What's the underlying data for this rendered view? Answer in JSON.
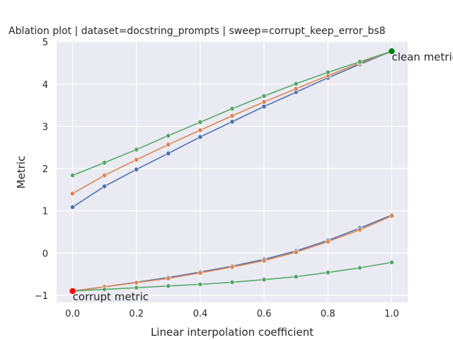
{
  "chart_data": {
    "type": "line",
    "title": "Ablation plot | dataset=docstring_prompts | sweep=corrupt_keep_error_bs8",
    "xlabel": "Linear interpolation coefficient",
    "ylabel": "Metric",
    "xlim": [
      -0.05,
      1.05
    ],
    "ylim": [
      -1.17,
      5.02
    ],
    "grid": true,
    "x": [
      0.0,
      0.1,
      0.2,
      0.3,
      0.4,
      0.5,
      0.6,
      0.7,
      0.8,
      0.9,
      1.0
    ],
    "xticks": [
      "0.0",
      "0.2",
      "0.4",
      "0.6",
      "0.8",
      "1.0"
    ],
    "yticks": [
      "−1",
      "0",
      "1",
      "2",
      "3",
      "4",
      "5"
    ],
    "series": [
      {
        "color": "#4c72b0",
        "values": [
          1.09,
          1.58,
          1.98,
          2.36,
          2.75,
          3.11,
          3.47,
          3.81,
          4.15,
          4.47,
          4.78
        ]
      },
      {
        "color": "#dd8452",
        "values": [
          1.41,
          1.84,
          2.21,
          2.57,
          2.91,
          3.25,
          3.58,
          3.89,
          4.2,
          4.5,
          4.78
        ]
      },
      {
        "color": "#55a868",
        "values": [
          1.84,
          2.14,
          2.45,
          2.78,
          3.1,
          3.42,
          3.72,
          4.01,
          4.28,
          4.53,
          4.78
        ]
      },
      {
        "color": "#4c72b0",
        "values": [
          -0.9,
          -0.8,
          -0.69,
          -0.58,
          -0.45,
          -0.31,
          -0.15,
          0.05,
          0.3,
          0.59,
          0.9
        ]
      },
      {
        "color": "#dd8452",
        "values": [
          -0.9,
          -0.8,
          -0.7,
          -0.6,
          -0.47,
          -0.33,
          -0.18,
          0.02,
          0.27,
          0.55,
          0.88
        ]
      },
      {
        "color": "#55a868",
        "values": [
          -0.9,
          -0.86,
          -0.82,
          -0.78,
          -0.74,
          -0.69,
          -0.63,
          -0.56,
          -0.46,
          -0.35,
          -0.22
        ]
      }
    ],
    "annotations": [
      {
        "label": "clean metric",
        "x": 1.0,
        "y": 4.78,
        "color": "#008000"
      },
      {
        "label": "corrupt metric",
        "x": 0.0,
        "y": -0.9,
        "color": "#ff0000"
      }
    ]
  }
}
